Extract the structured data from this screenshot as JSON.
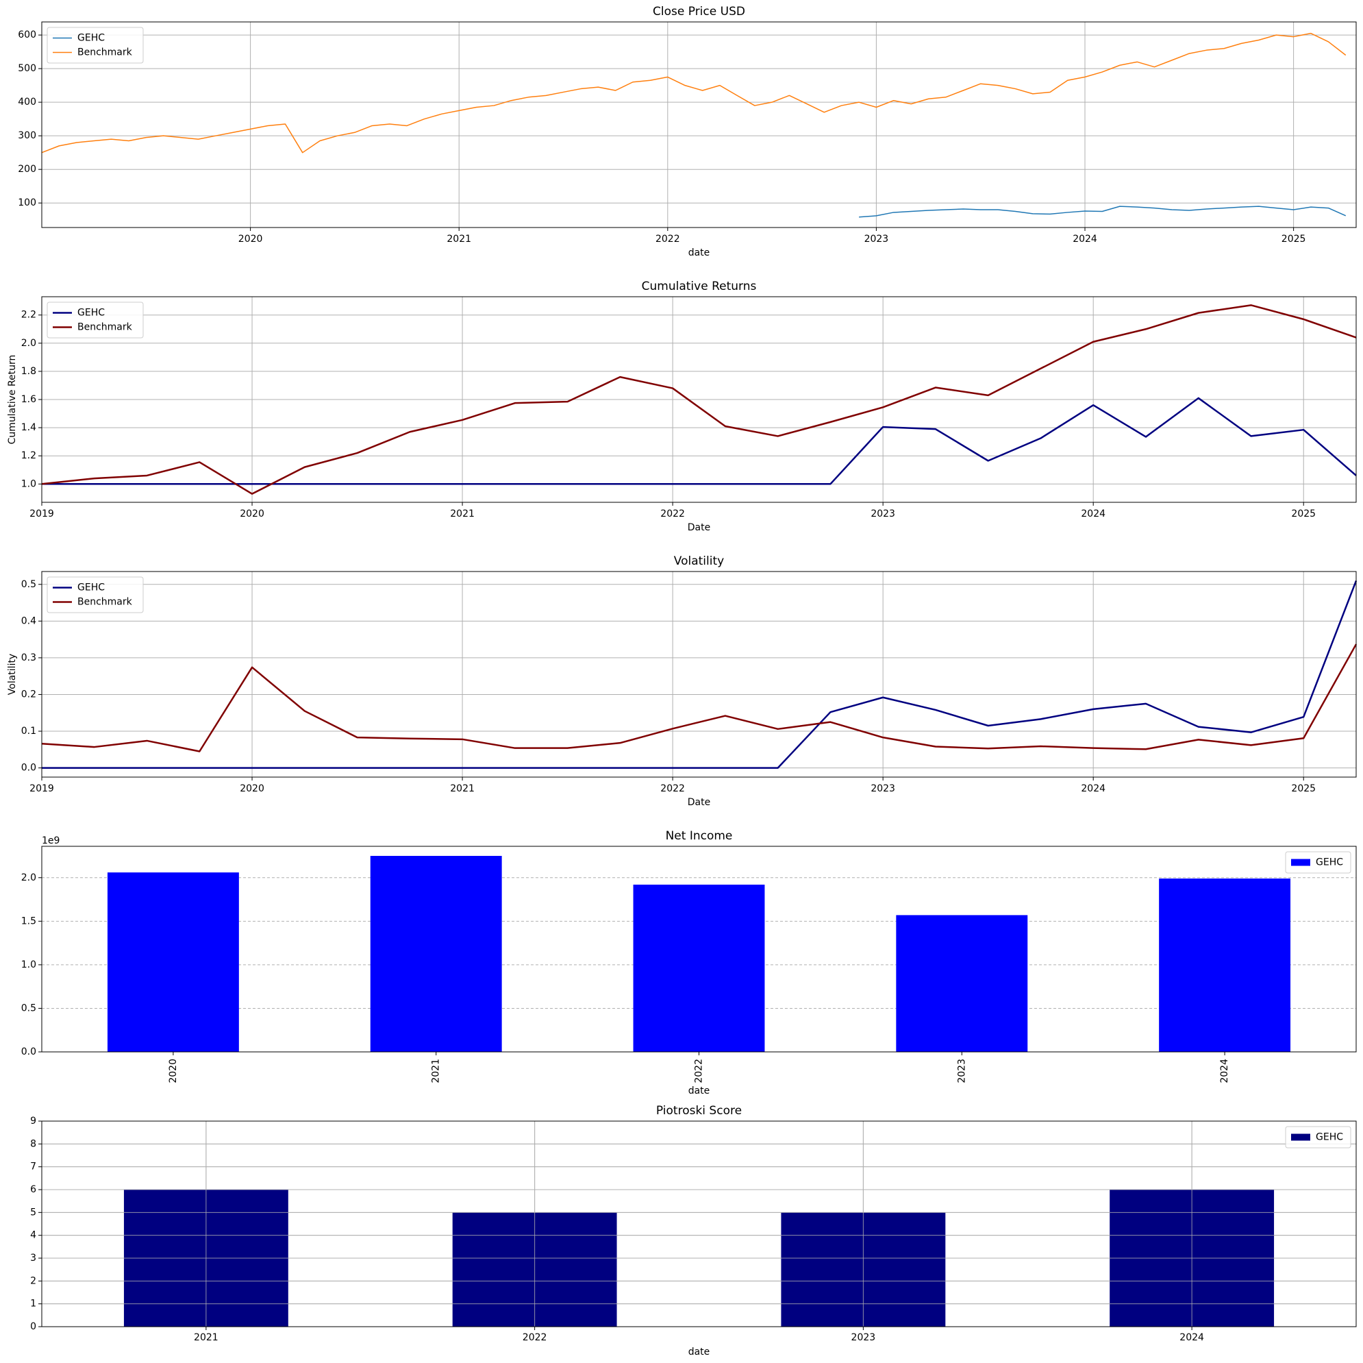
{
  "chart_data": [
    {
      "type": "line",
      "title": "Close Price USD",
      "xlabel": "date",
      "legend": "upper left",
      "grid": true,
      "grid_axis": "both",
      "line_width": 1.5,
      "x": [
        2019,
        2019.083,
        2019.167,
        2019.25,
        2019.333,
        2019.417,
        2019.5,
        2019.583,
        2019.667,
        2019.75,
        2019.833,
        2019.917,
        2020,
        2020.083,
        2020.167,
        2020.25,
        2020.333,
        2020.417,
        2020.5,
        2020.583,
        2020.667,
        2020.75,
        2020.833,
        2020.917,
        2021,
        2021.083,
        2021.167,
        2021.25,
        2021.333,
        2021.417,
        2021.5,
        2021.583,
        2021.667,
        2021.75,
        2021.833,
        2021.917,
        2022,
        2022.083,
        2022.167,
        2022.25,
        2022.333,
        2022.417,
        2022.5,
        2022.583,
        2022.667,
        2022.75,
        2022.833,
        2022.917,
        2023,
        2023.083,
        2023.167,
        2023.25,
        2023.333,
        2023.417,
        2023.5,
        2023.583,
        2023.667,
        2023.75,
        2023.833,
        2023.917,
        2024,
        2024.083,
        2024.167,
        2024.25,
        2024.333,
        2024.417,
        2024.5,
        2024.583,
        2024.667,
        2024.75,
        2024.833,
        2024.917,
        2025,
        2025.083,
        2025.167,
        2025.25
      ],
      "series": [
        {
          "name": "GEHC",
          "color": "#1f77b4",
          "values": [
            null,
            null,
            null,
            null,
            null,
            null,
            null,
            null,
            null,
            null,
            null,
            null,
            null,
            null,
            null,
            null,
            null,
            null,
            null,
            null,
            null,
            null,
            null,
            null,
            null,
            null,
            null,
            null,
            null,
            null,
            null,
            null,
            null,
            null,
            null,
            null,
            null,
            null,
            null,
            null,
            null,
            null,
            null,
            null,
            null,
            null,
            null,
            58,
            62,
            72,
            75,
            78,
            80,
            82,
            80,
            80,
            75,
            68,
            67,
            72,
            76,
            75,
            90,
            88,
            85,
            80,
            78,
            82,
            85,
            88,
            90,
            85,
            80,
            88,
            85,
            62
          ]
        },
        {
          "name": "Benchmark",
          "color": "#ff7f0e",
          "values": [
            250,
            270,
            280,
            285,
            290,
            285,
            295,
            300,
            295,
            290,
            300,
            310,
            320,
            330,
            335,
            250,
            285,
            300,
            310,
            330,
            335,
            330,
            350,
            365,
            375,
            385,
            390,
            405,
            415,
            420,
            430,
            440,
            445,
            435,
            460,
            465,
            475,
            450,
            435,
            450,
            420,
            390,
            400,
            420,
            395,
            370,
            390,
            400,
            385,
            405,
            395,
            410,
            415,
            435,
            455,
            450,
            440,
            425,
            430,
            465,
            475,
            490,
            510,
            520,
            505,
            525,
            545,
            555,
            560,
            575,
            585,
            600,
            595,
            605,
            580,
            540
          ]
        }
      ],
      "xlim": [
        2019,
        2025.3
      ],
      "xticks": [
        2020,
        2021,
        2022,
        2023,
        2024,
        2025
      ],
      "ylim": [
        27,
        639
      ],
      "yticks": [
        100,
        200,
        300,
        400,
        500,
        600
      ]
    },
    {
      "type": "line",
      "title": "Cumulative Returns",
      "xlabel": "Date",
      "ylabel": "Cumulative Return",
      "legend": "upper left",
      "grid": true,
      "grid_axis": "both",
      "line_width": 2.5,
      "x": [
        2019,
        2019.25,
        2019.5,
        2019.75,
        2020,
        2020.25,
        2020.5,
        2020.75,
        2021,
        2021.25,
        2021.5,
        2021.75,
        2022,
        2022.25,
        2022.5,
        2022.75,
        2023,
        2023.25,
        2023.5,
        2023.75,
        2024,
        2024.25,
        2024.5,
        2024.75,
        2025,
        2025.25
      ],
      "series": [
        {
          "name": "GEHC",
          "color": "#000080",
          "values": [
            1.0,
            1.0,
            1.0,
            1.0,
            1.0,
            1.0,
            1.0,
            1.0,
            1.0,
            1.0,
            1.0,
            1.0,
            1.0,
            1.0,
            1.0,
            1.0,
            1.405,
            1.39,
            1.165,
            1.325,
            1.56,
            1.335,
            1.61,
            1.34,
            1.385,
            1.06
          ]
        },
        {
          "name": "Benchmark",
          "color": "#800000",
          "values": [
            1.0,
            1.04,
            1.06,
            1.155,
            0.93,
            1.12,
            1.22,
            1.37,
            1.455,
            1.575,
            1.585,
            1.76,
            1.68,
            1.41,
            1.34,
            1.44,
            1.545,
            1.685,
            1.63,
            1.82,
            2.01,
            2.1,
            2.215,
            2.27,
            2.17,
            2.04
          ]
        }
      ],
      "xlim": [
        2019,
        2025.25
      ],
      "xticks": [
        2019,
        2020,
        2021,
        2022,
        2023,
        2024,
        2025
      ],
      "ylim": [
        0.87,
        2.33
      ],
      "yticks": [
        {
          "value": 1.0,
          "label": "1.0"
        },
        1.2,
        1.4,
        1.6,
        1.8,
        {
          "value": 2.0,
          "label": "2.0"
        },
        2.2
      ]
    },
    {
      "type": "line",
      "title": "Volatility",
      "xlabel": "Date",
      "ylabel": "Volatility",
      "legend": "upper left",
      "grid": true,
      "grid_axis": "both",
      "line_width": 2.5,
      "x": [
        2019,
        2019.25,
        2019.5,
        2019.75,
        2020,
        2020.25,
        2020.5,
        2020.75,
        2021,
        2021.25,
        2021.5,
        2021.75,
        2022,
        2022.25,
        2022.5,
        2022.75,
        2023,
        2023.25,
        2023.5,
        2023.75,
        2024,
        2024.25,
        2024.5,
        2024.75,
        2025,
        2025.25
      ],
      "series": [
        {
          "name": "GEHC",
          "color": "#000080",
          "values": [
            0,
            0,
            0,
            0,
            0,
            0,
            0,
            0,
            0,
            0,
            0,
            0,
            0,
            0,
            0,
            0.152,
            0.192,
            0.158,
            0.115,
            0.133,
            0.16,
            0.175,
            0.112,
            0.097,
            0.139,
            0.51
          ]
        },
        {
          "name": "Benchmark",
          "color": "#800000",
          "values": [
            0.066,
            0.057,
            0.074,
            0.045,
            0.274,
            0.155,
            0.083,
            0.08,
            0.078,
            0.054,
            0.054,
            0.068,
            0.107,
            0.142,
            0.106,
            0.125,
            0.083,
            0.058,
            0.053,
            0.059,
            0.054,
            0.051,
            0.077,
            0.062,
            0.081,
            0.337
          ]
        }
      ],
      "xlim": [
        2019,
        2025.25
      ],
      "xticks": [
        2019,
        2020,
        2021,
        2022,
        2023,
        2024,
        2025
      ],
      "ylim": [
        -0.025,
        0.535
      ],
      "yticks": [
        {
          "value": 0,
          "label": "0.0"
        },
        0.1,
        0.2,
        0.3,
        0.4,
        0.5
      ]
    },
    {
      "type": "bar",
      "title": "Net Income",
      "xlabel": "date",
      "legend": "upper right",
      "grid": true,
      "grid_axis": "y",
      "grid_style": "dashed",
      "xtick_rotation": 90,
      "y_offset_label": "1e9",
      "categories": [
        "2020",
        "2021",
        "2022",
        "2023",
        "2024"
      ],
      "series": [
        {
          "name": "GEHC",
          "color": "#0000ff",
          "values": [
            2060000000,
            2250000000,
            1920000000,
            1570000000,
            1990000000
          ]
        }
      ],
      "ylim": [
        0,
        2360000000
      ],
      "yticks": [
        {
          "value": 0,
          "label": "0.0"
        },
        {
          "value": 500000000,
          "label": "0.5"
        },
        {
          "value": 1000000000,
          "label": "1.0"
        },
        {
          "value": 1500000000,
          "label": "1.5"
        },
        {
          "value": 2000000000,
          "label": "2.0"
        }
      ]
    },
    {
      "type": "bar",
      "title": "Piotroski Score",
      "xlabel": "date",
      "legend": "upper right",
      "grid": true,
      "grid_axis": "both",
      "xtick_rotation": 0,
      "categories": [
        "2021",
        "2022",
        "2023",
        "2024"
      ],
      "series": [
        {
          "name": "GEHC",
          "color": "#000080",
          "values": [
            6,
            5,
            5,
            6
          ]
        }
      ],
      "ylim": [
        0,
        9
      ],
      "yticks": [
        0,
        1,
        2,
        3,
        4,
        5,
        6,
        7,
        8,
        9
      ]
    }
  ]
}
